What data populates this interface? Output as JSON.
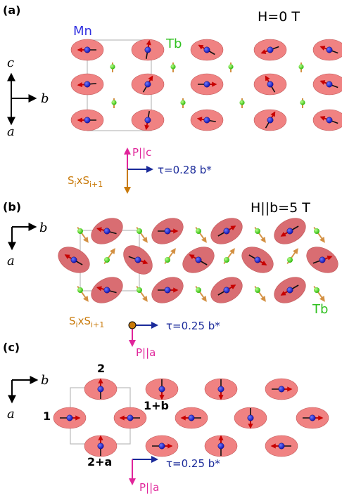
{
  "panels": [
    {
      "label": "(a)",
      "field": "H=0 T",
      "mn_label": "Mn",
      "tb_label": "Tb",
      "axes": {
        "up": "c",
        "right": "b",
        "down": "a"
      },
      "polarization": "P||c",
      "cross_base": "S",
      "cross_sub1": "i",
      "cross_mid": "xS",
      "cross_sub2": "i+1",
      "tau": "τ=0.28 b*"
    },
    {
      "label": "(b)",
      "field": "H||b=5 T",
      "tb_label": "Tb",
      "axes": {
        "right": "b",
        "down": "a"
      },
      "polarization": "P||a",
      "cross_base": "S",
      "cross_sub1": "i",
      "cross_mid": "xS",
      "cross_sub2": "i+1",
      "tau": "τ=0.25 b*"
    },
    {
      "label": "(c)",
      "axes": {
        "right": "b",
        "down": "a"
      },
      "sites": {
        "s1": "1",
        "s2": "2",
        "s1b": "1+b",
        "s2a": "2+a"
      },
      "polarization": "P||a",
      "tau": "τ=0.25 b*"
    }
  ],
  "colors": {
    "ellipse_a": "#f08282",
    "ellipse_b": "#d96d72",
    "mn_atom": "#1c1cc8",
    "tb_atom": "#55dd2a",
    "spin_arrow": "#c80000",
    "tb_arrow": "#d39042",
    "polarization": "#e0249a",
    "tau": "#1a2a9a",
    "cross": "#c97a0a",
    "mn_text": "#3030e0",
    "tb_text": "#30c020"
  }
}
